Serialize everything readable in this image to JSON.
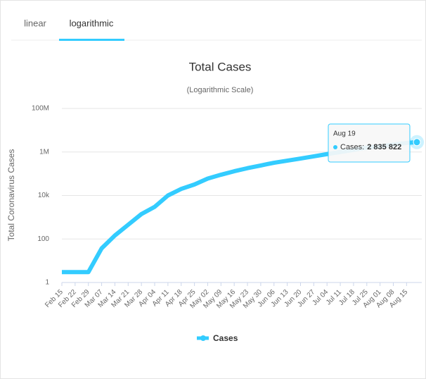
{
  "tabs": [
    "linear",
    "logarithmic"
  ],
  "chart_data": {
    "type": "line",
    "title": "Total Cases",
    "subtitle": "(Logarithmic Scale)",
    "y_label": "Total Coronavirus Cases",
    "log_y": true,
    "grid": true,
    "legend": "bottom",
    "categories": [
      "Feb 15",
      "Feb 22",
      "Feb 29",
      "Mar 07",
      "Mar 14",
      "Mar 21",
      "Mar 28",
      "Apr 04",
      "Apr 11",
      "Apr 18",
      "Apr 25",
      "May 02",
      "May 09",
      "May 16",
      "May 23",
      "May 30",
      "Jun 06",
      "Jun 13",
      "Jun 20",
      "Jun 27",
      "Jul 04",
      "Jul 11",
      "Jul 18",
      "Jul 25",
      "Aug 01",
      "Aug 08",
      "Aug 15"
    ],
    "series": [
      {
        "name": "Cases",
        "color": "#33ccff",
        "values": [
          3,
          3,
          3,
          37,
          145,
          450,
          1400,
          3000,
          10000,
          20000,
          32000,
          60000,
          90000,
          130000,
          180000,
          240000,
          320000,
          400000,
          500000,
          630000,
          800000,
          1000000,
          1250000,
          1600000,
          1800000,
          2200000,
          2600000
        ]
      }
    ],
    "ylim": [
      1,
      100000000
    ],
    "yticks": [
      1,
      100,
      {
        "value": 10000,
        "label": "10k"
      },
      {
        "value": 1000000,
        "label": "1M"
      },
      {
        "value": 100000000,
        "label": "100M"
      }
    ],
    "tooltip": {
      "date": "Aug 19",
      "label": "Cases:",
      "value": 2835822,
      "value_label": "2 835 822"
    }
  }
}
